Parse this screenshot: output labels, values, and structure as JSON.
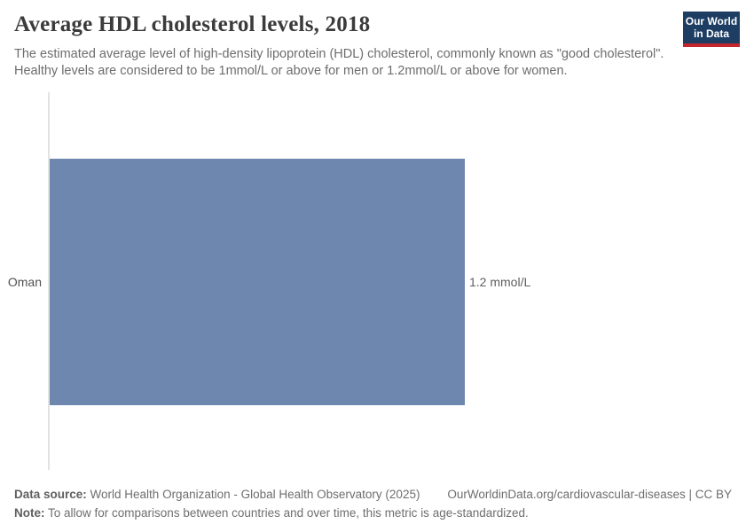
{
  "header": {
    "title": "Average HDL cholesterol levels, 2018",
    "subtitle": "The estimated average level of high-density lipoprotein (HDL) cholesterol, commonly known as \"good cholesterol\". Healthy levels are considered to be 1mmol/L or above for men or 1.2mmol/L or above for women.",
    "logo": {
      "line1": "Our World",
      "line2": "in Data",
      "bg_color": "#1d3d63",
      "stripe_color": "#c5262d"
    }
  },
  "chart_data": {
    "type": "bar",
    "orientation": "horizontal",
    "title": "Average HDL cholesterol levels, 2018",
    "categories": [
      "Oman"
    ],
    "values": [
      1.2
    ],
    "unit": "mmol/L",
    "value_labels": [
      "1.2 mmol/L"
    ],
    "xlim": [
      0,
      1.2
    ],
    "bar_color": "#6e87af",
    "axis_line_color": "#e3e3e3",
    "grid": false,
    "legend": "none"
  },
  "footer": {
    "source_prefix": "Data source:",
    "source_text": " World Health Organization - Global Health Observatory (2025)",
    "link_text": "OurWorldinData.org/cardiovascular-diseases | CC BY",
    "note_prefix": "Note:",
    "note_text": " To allow for comparisons between countries and over time, this metric is age-standardized."
  }
}
